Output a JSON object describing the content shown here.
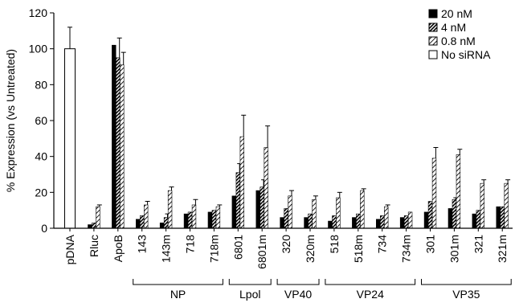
{
  "chart_data": {
    "type": "bar",
    "ylabel": "% Expression (vs Untreated)",
    "ylim": [
      0,
      120
    ],
    "yticks": [
      0,
      20,
      40,
      60,
      80,
      100,
      120
    ],
    "categories": [
      "pDNA",
      "Rluc",
      "ApoB",
      "143",
      "143m",
      "718",
      "718m",
      "6801",
      "6801m",
      "320",
      "320m",
      "518",
      "518m",
      "734",
      "734m",
      "301",
      "301m",
      "321",
      "321m"
    ],
    "series": [
      {
        "name": "20 nM",
        "pattern": "solid",
        "values": [
          null,
          2,
          102,
          5,
          3,
          8,
          9,
          18,
          21,
          6,
          6,
          4,
          6,
          5,
          6,
          9,
          11,
          8,
          12
        ]
      },
      {
        "name": "4 nM",
        "pattern": "dense",
        "values": [
          null,
          3,
          95,
          7,
          6,
          9,
          10,
          31,
          23,
          11,
          8,
          7,
          8,
          7,
          7,
          15,
          16,
          10,
          12
        ],
        "errors": [
          null,
          null,
          11,
          null,
          2,
          null,
          null,
          5,
          4,
          null,
          null,
          null,
          null,
          null,
          null,
          null,
          1,
          null,
          null
        ]
      },
      {
        "name": "0.8 nM",
        "pattern": "sparse",
        "values": [
          null,
          12,
          91,
          13,
          21,
          13,
          12,
          51,
          45,
          18,
          16,
          17,
          21,
          12,
          9,
          39,
          41,
          25,
          25
        ],
        "errors": [
          null,
          1,
          7,
          2,
          2,
          3,
          1,
          12,
          12,
          3,
          2,
          3,
          1,
          1,
          null,
          6,
          3,
          2,
          2
        ]
      },
      {
        "name": "No siRNA",
        "pattern": "open",
        "values": [
          100,
          null,
          null,
          null,
          null,
          null,
          null,
          null,
          null,
          null,
          null,
          null,
          null,
          null,
          null,
          null,
          null,
          null,
          null
        ],
        "errors": [
          12,
          null,
          null,
          null,
          null,
          null,
          null,
          null,
          null,
          null,
          null,
          null,
          null,
          null,
          null,
          null,
          null,
          null,
          null
        ]
      }
    ],
    "groups": [
      {
        "label": "NP",
        "from": 3,
        "to": 6
      },
      {
        "label": "Lpol",
        "from": 7,
        "to": 8
      },
      {
        "label": "VP40",
        "from": 9,
        "to": 10
      },
      {
        "label": "VP24",
        "from": 11,
        "to": 14
      },
      {
        "label": "VP35",
        "from": 15,
        "to": 18
      }
    ],
    "legend_position": "top-right",
    "grid": false
  }
}
